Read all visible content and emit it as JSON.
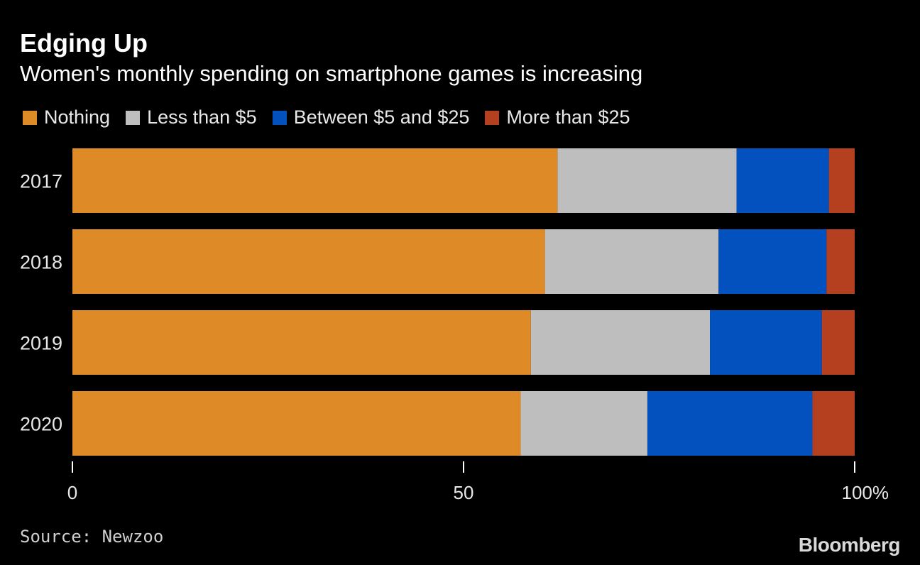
{
  "title": "Edging Up",
  "subtitle": "Women's monthly spending on smartphone games is increasing",
  "source": "Source: Newzoo",
  "brand": "Bloomberg",
  "chart_data": {
    "type": "bar",
    "orientation": "horizontal",
    "stacked": true,
    "categories": [
      "2017",
      "2018",
      "2019",
      "2020"
    ],
    "series": [
      {
        "name": "Nothing",
        "color": "#DD8A27",
        "values": [
          62,
          60.4,
          58.6,
          57.3
        ]
      },
      {
        "name": "Less than $5",
        "color": "#BEBEBE",
        "values": [
          22.9,
          22.2,
          22.9,
          16.2
        ]
      },
      {
        "name": "Between $5 and $25",
        "color": "#0251BF",
        "values": [
          11.8,
          13.8,
          14.3,
          21.1
        ]
      },
      {
        "name": "More than $25",
        "color": "#B5401F",
        "values": [
          3.3,
          3.6,
          4.2,
          5.4
        ]
      }
    ],
    "xlim": [
      0,
      100
    ],
    "xticks": [
      0,
      50,
      100
    ],
    "xtick_labels": [
      "0",
      "50",
      "100%"
    ],
    "legend_position": "top",
    "grid": false
  }
}
